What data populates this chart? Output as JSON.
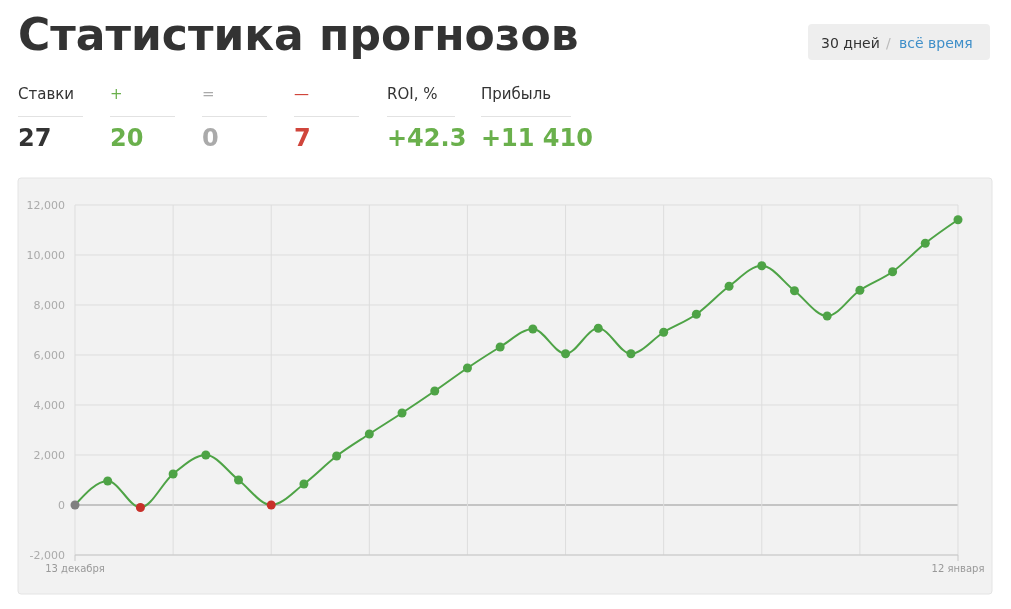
{
  "chart_data": {
    "type": "line",
    "title": "Статистика прогнозов",
    "annotations": [
      "30 дней",
      "/",
      "всё время",
      "Ставки",
      "27",
      "+",
      "20",
      "=",
      "0",
      "—",
      "7",
      "ROI, %",
      "+42.3",
      "Прибыль",
      "+11 410"
    ],
    "categories": [
      "13 декабря",
      null,
      null,
      null,
      null,
      null,
      null,
      null,
      null,
      null,
      null,
      null,
      null,
      null,
      null,
      null,
      null,
      null,
      null,
      null,
      null,
      null,
      null,
      null,
      null,
      null,
      null,
      "12 января"
    ],
    "series": [
      {
        "color": "#4ea346",
        "values": [
          0,
          960,
          -100,
          1240,
          2000,
          1000,
          0,
          840,
          1960,
          2840,
          3680,
          4560,
          5480,
          6320,
          7040,
          6050,
          7070,
          6050,
          6910,
          7630,
          8750,
          9570,
          8570,
          7560,
          8590,
          9330,
          10470,
          11410
        ],
        "colors": [
          "#808080",
          "#4ea346",
          "#c8302a",
          "#4ea346",
          "#4ea346",
          "#4ea346",
          "#c8302a",
          "#4ea346",
          "#4ea346",
          "#4ea346",
          "#4ea346",
          "#4ea346",
          "#4ea346",
          "#4ea346",
          "#4ea346",
          "#4ea346",
          "#4ea346",
          "#4ea346",
          "#4ea346",
          "#4ea346",
          "#4ea346",
          "#4ea346",
          "#4ea346",
          "#4ea346",
          "#4ea346",
          "#4ea346",
          "#4ea346",
          "#4ea346"
        ]
      }
    ],
    "ylim": [
      -2000,
      12000
    ],
    "yticks": [
      {
        "value": -2000,
        "label": "-2,000"
      },
      0,
      {
        "value": 2000,
        "label": "2,000"
      },
      {
        "value": 4000,
        "label": "4,000"
      },
      {
        "value": 6000,
        "label": "6,000"
      },
      {
        "value": 8000,
        "label": "8,000"
      },
      {
        "value": 10000,
        "label": "10,000"
      },
      {
        "value": 12000,
        "label": "12,000"
      }
    ],
    "grid": true,
    "marker": "circle",
    "line_style": "solid"
  }
}
